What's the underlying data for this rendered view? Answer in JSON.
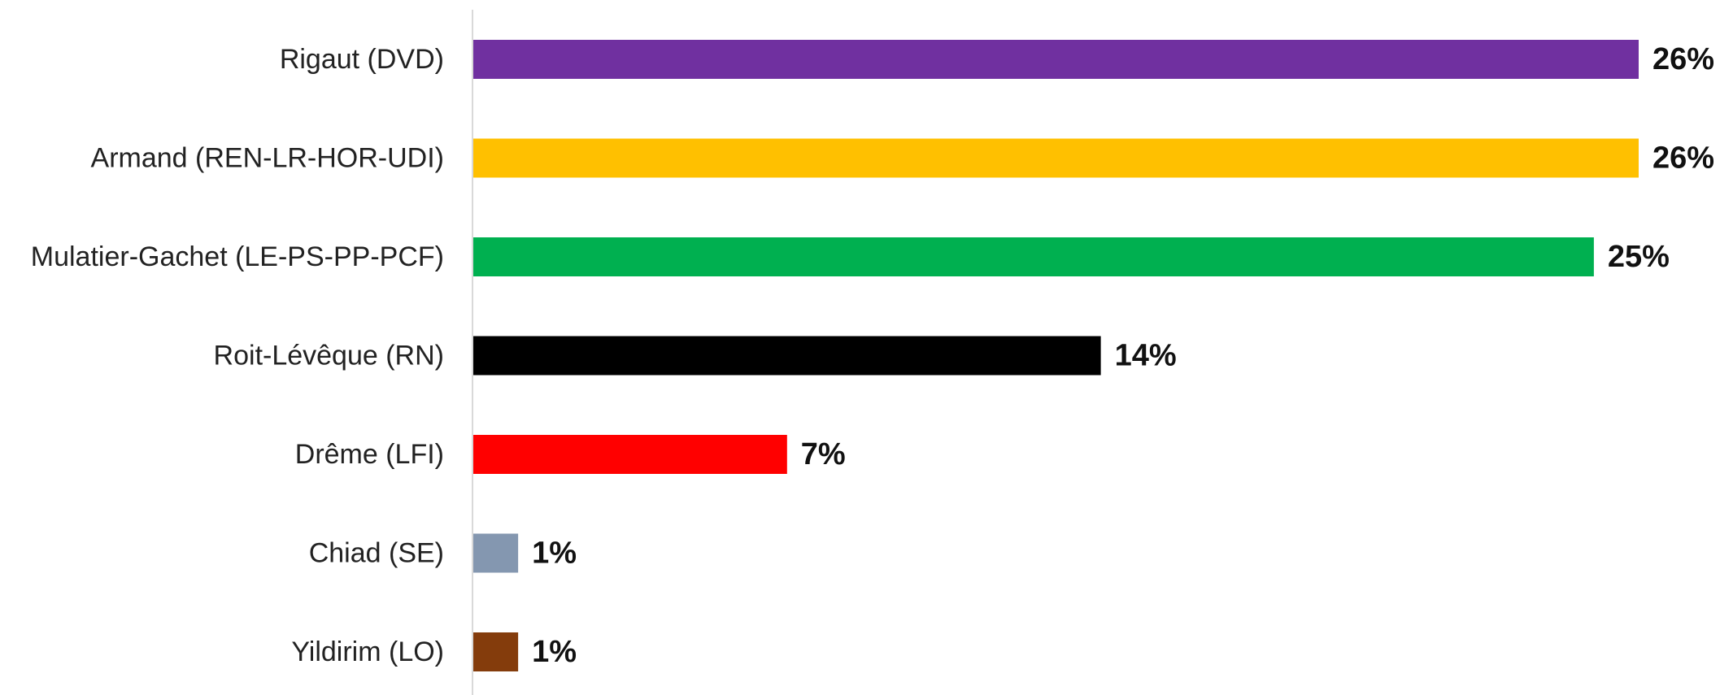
{
  "chart_data": {
    "type": "bar",
    "orientation": "horizontal",
    "categories": [
      "Rigaut (DVD)",
      "Armand (REN-LR-HOR-UDI)",
      "Mulatier-Gachet (LE-PS-PP-PCF)",
      "Roit-Lévêque (RN)",
      "Drême (LFI)",
      "Chiad (SE)",
      "Yildirim (LO)"
    ],
    "values": [
      26,
      26,
      25,
      14,
      7,
      1,
      1
    ],
    "value_labels": [
      "26%",
      "26%",
      "25%",
      "14%",
      "7%",
      "1%",
      "1%"
    ],
    "colors": [
      "#7030a0",
      "#ffc000",
      "#00b050",
      "#000000",
      "#ff0000",
      "#8497b0",
      "#843c0c"
    ],
    "xlim": [
      0,
      26
    ],
    "grid": false,
    "legend": "none"
  }
}
